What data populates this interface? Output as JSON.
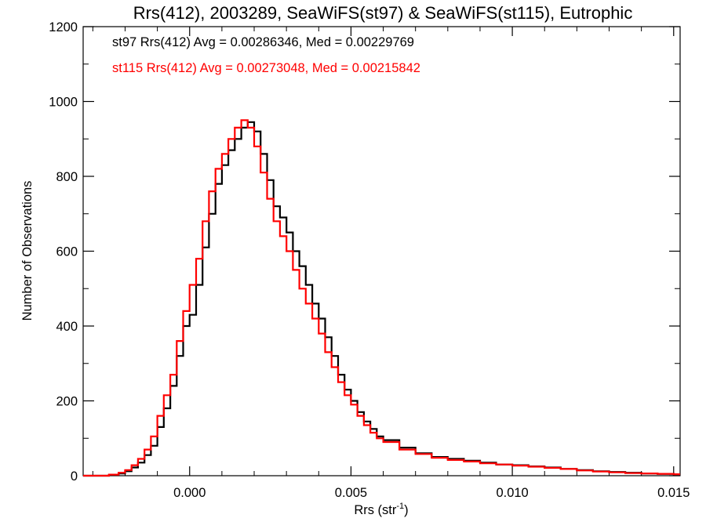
{
  "chart_data": {
    "type": "line",
    "title": "Rrs(412), 2003289, SeaWiFS(st97) & SeaWiFS(st115), Eutrophic",
    "xlabel_main": "Rrs (str",
    "xlabel_sup": "-1",
    "xlabel_close": ")",
    "ylabel": "Number of Observations",
    "xlim": [
      -0.0033,
      0.0152
    ],
    "ylim": [
      0,
      1200
    ],
    "xticks": [
      0.0,
      0.005,
      0.01,
      0.015
    ],
    "xtick_labels": [
      "0.000",
      "0.005",
      "0.010",
      "0.015"
    ],
    "yticks": [
      0,
      200,
      400,
      600,
      800,
      1000,
      1200
    ],
    "ytick_labels": [
      "0",
      "200",
      "400",
      "600",
      "800",
      "1000",
      "1200"
    ],
    "grid": false,
    "legend_position": "top-left",
    "annotations": [
      {
        "text": "st97 Rrs(412) Avg = 0.00286346, Med = 0.00229769",
        "color": "#000000"
      },
      {
        "text": "st115 Rrs(412) Avg = 0.00273048, Med = 0.00215842",
        "color": "#ff0000"
      }
    ],
    "series": [
      {
        "color": "#000000",
        "x": [
          -0.0033,
          -0.0025,
          -0.0022,
          -0.002,
          -0.0018,
          -0.0016,
          -0.0014,
          -0.0012,
          -0.001,
          -0.0008,
          -0.0006,
          -0.0004,
          -0.0002,
          0.0,
          0.0002,
          0.0004,
          0.0006,
          0.0008,
          0.001,
          0.0012,
          0.0014,
          0.0016,
          0.0018,
          0.002,
          0.0022,
          0.0024,
          0.0026,
          0.0028,
          0.003,
          0.0032,
          0.0034,
          0.0036,
          0.0038,
          0.004,
          0.0042,
          0.0044,
          0.0046,
          0.0048,
          0.005,
          0.0052,
          0.0054,
          0.0056,
          0.0058,
          0.006,
          0.0065,
          0.007,
          0.0075,
          0.008,
          0.0085,
          0.009,
          0.0095,
          0.01,
          0.0105,
          0.011,
          0.0115,
          0.012,
          0.0125,
          0.013,
          0.0135,
          0.014,
          0.0145,
          0.015,
          0.0152
        ],
        "y": [
          0,
          2,
          6,
          12,
          22,
          35,
          55,
          80,
          130,
          180,
          240,
          320,
          400,
          430,
          510,
          610,
          700,
          780,
          830,
          870,
          900,
          930,
          945,
          920,
          860,
          790,
          720,
          690,
          650,
          600,
          560,
          510,
          460,
          420,
          370,
          320,
          270,
          230,
          200,
          170,
          145,
          125,
          105,
          95,
          75,
          60,
          50,
          45,
          40,
          35,
          30,
          28,
          25,
          22,
          18,
          15,
          12,
          10,
          8,
          6,
          5,
          4,
          4
        ]
      },
      {
        "color": "#ff0000",
        "x": [
          -0.0033,
          -0.0025,
          -0.0022,
          -0.002,
          -0.0018,
          -0.0016,
          -0.0014,
          -0.0012,
          -0.001,
          -0.0008,
          -0.0006,
          -0.0004,
          -0.0002,
          0.0,
          0.0002,
          0.0004,
          0.0006,
          0.0008,
          0.001,
          0.0012,
          0.0014,
          0.0016,
          0.0018,
          0.002,
          0.0022,
          0.0024,
          0.0026,
          0.0028,
          0.003,
          0.0032,
          0.0034,
          0.0036,
          0.0038,
          0.004,
          0.0042,
          0.0044,
          0.0046,
          0.0048,
          0.005,
          0.0052,
          0.0054,
          0.0056,
          0.0058,
          0.006,
          0.0065,
          0.007,
          0.0075,
          0.008,
          0.0085,
          0.009,
          0.0095,
          0.01,
          0.0105,
          0.011,
          0.0115,
          0.012,
          0.0125,
          0.013,
          0.0135,
          0.014,
          0.0145,
          0.015,
          0.0152
        ],
        "y": [
          0,
          3,
          8,
          15,
          28,
          45,
          70,
          105,
          160,
          215,
          270,
          360,
          440,
          510,
          580,
          680,
          760,
          820,
          860,
          900,
          930,
          950,
          930,
          880,
          810,
          740,
          680,
          640,
          600,
          550,
          500,
          460,
          420,
          380,
          330,
          290,
          250,
          215,
          190,
          160,
          135,
          115,
          100,
          90,
          70,
          58,
          48,
          42,
          38,
          33,
          30,
          27,
          24,
          21,
          18,
          14,
          11,
          9,
          7,
          6,
          5,
          4,
          4
        ]
      }
    ]
  }
}
